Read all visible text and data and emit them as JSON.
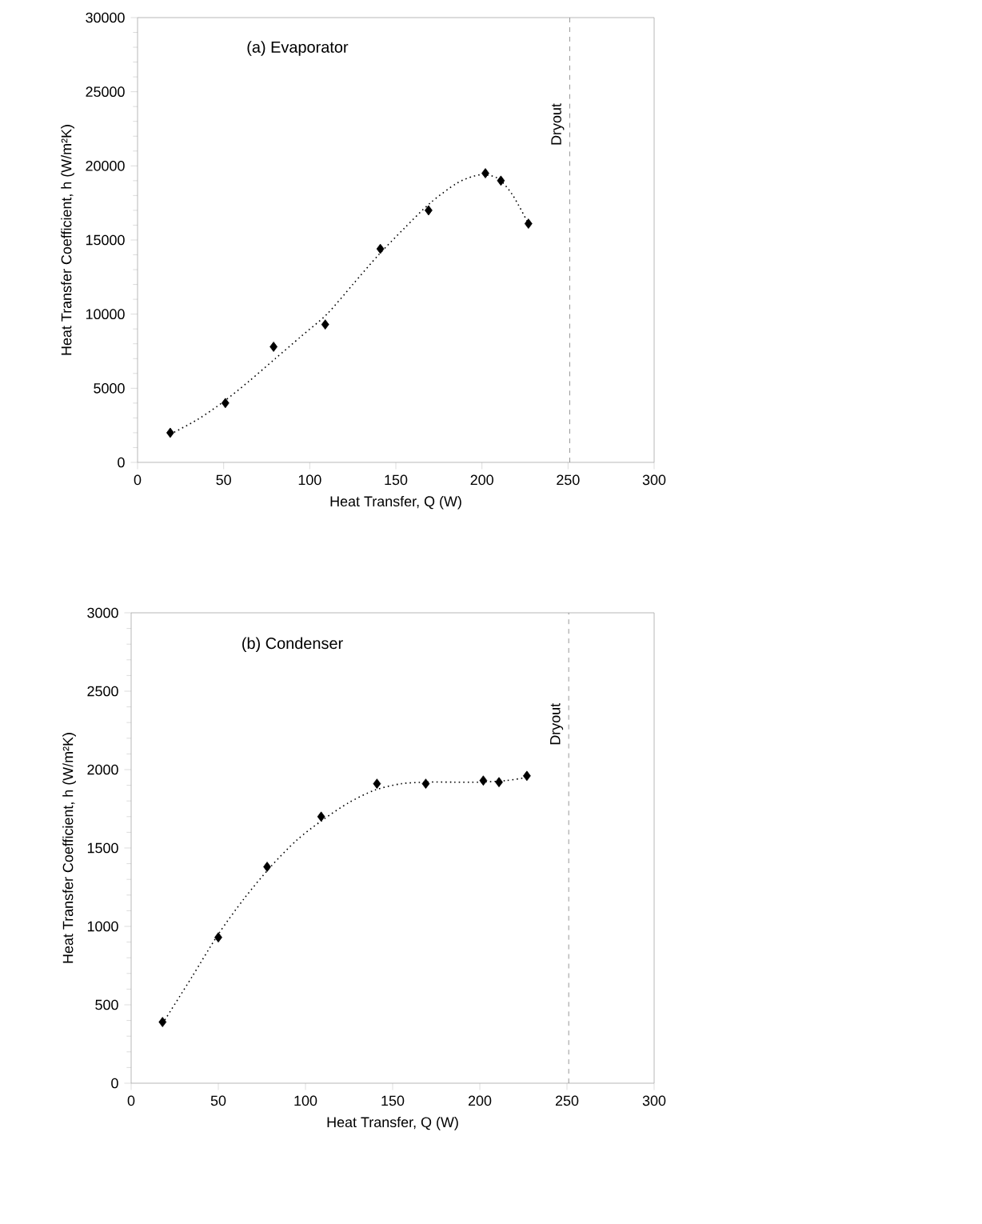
{
  "chart_data": [
    {
      "type": "scatter",
      "title": "(a) Evaporator",
      "xlabel": "Heat Transfer, Q (W)",
      "ylabel": "Heat Transfer Coefficient, h (W/m²K)",
      "xlim": [
        0,
        300
      ],
      "ylim": [
        0,
        30000
      ],
      "xticks": [
        0,
        50,
        100,
        150,
        200,
        250,
        300
      ],
      "yticks": [
        0,
        5000,
        10000,
        15000,
        20000,
        25000,
        30000
      ],
      "grid": false,
      "marker": "diamond",
      "series": [
        {
          "color": "#000000",
          "x": [
            19,
            51,
            79,
            109,
            141,
            169,
            202,
            211,
            227
          ],
          "values": [
            2000,
            4000,
            7800,
            9300,
            14400,
            17000,
            19500,
            19000,
            16100
          ]
        },
        {
          "type": "line",
          "color": "#000000",
          "marker": "none",
          "line_style": "dotted",
          "x": [
            19,
            35,
            50,
            65,
            80,
            95,
            110,
            125,
            140,
            155,
            170,
            185,
            195,
            202,
            210,
            218,
            227
          ],
          "values": [
            1900,
            2900,
            4100,
            5500,
            7000,
            8500,
            10000,
            12000,
            14000,
            15800,
            17500,
            18800,
            19300,
            19400,
            19100,
            18000,
            16100
          ]
        }
      ],
      "ref_lines": [
        {
          "axis": "x",
          "value": 251,
          "label": "Dryout",
          "color": "#7f7f7f",
          "line_style": "dashed"
        }
      ]
    },
    {
      "type": "scatter",
      "title": "(b) Condenser",
      "xlabel": "Heat Transfer, Q (W)",
      "ylabel": "Heat Transfer Coefficient, h (W/m²K)",
      "xlim": [
        0,
        300
      ],
      "ylim": [
        0,
        3000
      ],
      "xticks": [
        0,
        50,
        100,
        150,
        200,
        250,
        300
      ],
      "yticks": [
        0,
        500,
        1000,
        1500,
        2000,
        2500,
        3000
      ],
      "grid": false,
      "marker": "diamond",
      "series": [
        {
          "color": "#000000",
          "x": [
            18,
            50,
            78,
            109,
            141,
            169,
            202,
            211,
            227
          ],
          "values": [
            390,
            930,
            1380,
            1700,
            1910,
            1910,
            1930,
            1920,
            1960
          ]
        },
        {
          "type": "line",
          "color": "#000000",
          "marker": "none",
          "line_style": "dotted",
          "x": [
            18,
            35,
            50,
            65,
            80,
            95,
            110,
            125,
            140,
            155,
            170,
            185,
            200,
            215,
            227
          ],
          "values": [
            380,
            680,
            950,
            1180,
            1380,
            1550,
            1680,
            1790,
            1870,
            1910,
            1920,
            1920,
            1920,
            1930,
            1950
          ]
        }
      ],
      "ref_lines": [
        {
          "axis": "x",
          "value": 251,
          "label": "Dryout",
          "color": "#7f7f7f",
          "line_style": "dashed"
        }
      ]
    }
  ]
}
